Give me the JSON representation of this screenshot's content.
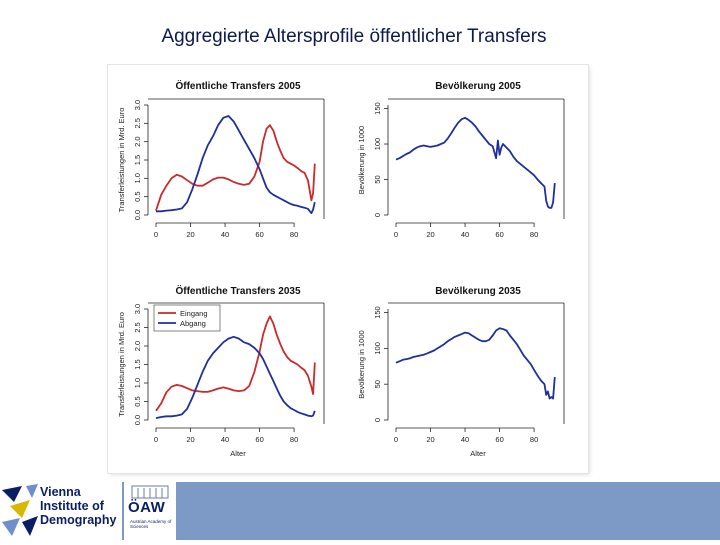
{
  "slide": {
    "title": "Aggregierte Altersprofile öffentlicher Transfers"
  },
  "logos": {
    "vid": {
      "line1": "Vienna",
      "line2": "Institute of",
      "line3": "Demography"
    },
    "oaw": {
      "name": "ÖAW",
      "sub": "Austrian Academy of Sciences"
    }
  },
  "colors": {
    "inflow": "#cc2a2a",
    "outflow": "#1f2f9c",
    "footer": "#7d9ac7",
    "title": "#0d1a4a"
  },
  "chart_data": [
    {
      "type": "line",
      "title": "Öffentliche Transfers 2005",
      "xlabel": "",
      "ylabel": "Transferleistungen in Mrd. Euro",
      "xlim": [
        0,
        95
      ],
      "ylim": [
        0,
        3.0
      ],
      "xticks": [
        "0",
        "20",
        "40",
        "60",
        "80"
      ],
      "yticks": [
        "0.0",
        "0.5",
        "1.0",
        "1.5",
        "2.0",
        "2.5",
        "3.0"
      ],
      "series": [
        {
          "name": "Eingang",
          "color": "#cc2a2a",
          "x": [
            0,
            3,
            6,
            9,
            12,
            15,
            18,
            21,
            24,
            27,
            30,
            33,
            36,
            39,
            42,
            45,
            48,
            51,
            54,
            57,
            60,
            62,
            64,
            66,
            68,
            70,
            72,
            74,
            76,
            78,
            80,
            82,
            84,
            86,
            88,
            90,
            91,
            92
          ],
          "y": [
            0.12,
            0.55,
            0.8,
            1.0,
            1.1,
            1.05,
            0.95,
            0.85,
            0.8,
            0.8,
            0.88,
            0.97,
            1.02,
            1.02,
            0.97,
            0.9,
            0.85,
            0.82,
            0.85,
            1.05,
            1.45,
            2.0,
            2.35,
            2.45,
            2.3,
            2.0,
            1.75,
            1.55,
            1.45,
            1.4,
            1.35,
            1.28,
            1.2,
            1.15,
            0.95,
            0.4,
            0.6,
            1.4
          ]
        },
        {
          "name": "Abgang",
          "color": "#1f2f9c",
          "x": [
            0,
            3,
            6,
            9,
            12,
            15,
            18,
            21,
            24,
            27,
            30,
            33,
            36,
            39,
            42,
            45,
            48,
            51,
            54,
            57,
            60,
            62,
            64,
            66,
            68,
            70,
            72,
            74,
            76,
            78,
            80,
            82,
            84,
            86,
            88,
            90,
            91,
            92
          ],
          "y": [
            0.1,
            0.1,
            0.12,
            0.13,
            0.15,
            0.18,
            0.35,
            0.7,
            1.1,
            1.55,
            1.9,
            2.15,
            2.45,
            2.65,
            2.7,
            2.55,
            2.3,
            2.05,
            1.8,
            1.55,
            1.25,
            1.0,
            0.75,
            0.62,
            0.55,
            0.5,
            0.45,
            0.4,
            0.35,
            0.3,
            0.27,
            0.25,
            0.22,
            0.2,
            0.17,
            0.05,
            0.15,
            0.35
          ]
        }
      ]
    },
    {
      "type": "line",
      "title": "Bevölkerung 2005",
      "xlabel": "",
      "ylabel": "Bevölkerung in 1000",
      "xlim": [
        0,
        95
      ],
      "ylim": [
        0,
        155
      ],
      "xticks": [
        "0",
        "20",
        "40",
        "60",
        "80"
      ],
      "yticks": [
        "0",
        "50",
        "100",
        "150"
      ],
      "series": [
        {
          "name": "Bevölkerung",
          "color": "#1f2f9c",
          "x": [
            0,
            2,
            4,
            6,
            8,
            10,
            12,
            14,
            16,
            18,
            20,
            22,
            24,
            26,
            28,
            30,
            32,
            34,
            36,
            38,
            40,
            42,
            44,
            46,
            48,
            50,
            52,
            54,
            56,
            58,
            59,
            60,
            61,
            62,
            64,
            66,
            68,
            70,
            72,
            74,
            76,
            78,
            80,
            82,
            84,
            86,
            87,
            88,
            89,
            90,
            91,
            92
          ],
          "y": [
            78,
            80,
            83,
            86,
            88,
            92,
            95,
            97,
            98,
            97,
            96,
            97,
            98,
            100,
            102,
            108,
            115,
            123,
            130,
            135,
            137,
            134,
            130,
            125,
            118,
            112,
            106,
            100,
            97,
            80,
            105,
            85,
            95,
            100,
            95,
            90,
            82,
            76,
            72,
            68,
            64,
            60,
            56,
            50,
            45,
            40,
            20,
            12,
            10,
            10,
            18,
            45
          ]
        }
      ]
    },
    {
      "type": "line",
      "title": "Öffentliche Transfers 2035",
      "xlabel": "Alter",
      "ylabel": "Transferleistungen in Mrd. Euro",
      "xlim": [
        0,
        95
      ],
      "ylim": [
        0,
        3.0
      ],
      "xticks": [
        "0",
        "20",
        "40",
        "60",
        "80"
      ],
      "yticks": [
        "0.0",
        "0.5",
        "1.0",
        "1.5",
        "2.0",
        "2.5",
        "3.0"
      ],
      "legend": {
        "position": "top-left",
        "entries": [
          "Eingang",
          "Abgang"
        ]
      },
      "series": [
        {
          "name": "Eingang",
          "color": "#cc2a2a",
          "x": [
            0,
            3,
            6,
            9,
            12,
            15,
            18,
            21,
            24,
            27,
            30,
            33,
            36,
            39,
            42,
            45,
            48,
            51,
            54,
            57,
            60,
            62,
            64,
            66,
            68,
            70,
            72,
            74,
            76,
            78,
            80,
            82,
            84,
            86,
            88,
            90,
            91,
            92
          ],
          "y": [
            0.25,
            0.45,
            0.75,
            0.9,
            0.95,
            0.92,
            0.86,
            0.8,
            0.78,
            0.76,
            0.76,
            0.8,
            0.85,
            0.88,
            0.85,
            0.8,
            0.78,
            0.8,
            0.92,
            1.3,
            1.85,
            2.3,
            2.6,
            2.8,
            2.6,
            2.3,
            2.05,
            1.85,
            1.7,
            1.6,
            1.55,
            1.5,
            1.42,
            1.35,
            1.2,
            0.9,
            0.7,
            1.55
          ]
        },
        {
          "name": "Abgang",
          "color": "#1f2f9c",
          "x": [
            0,
            3,
            6,
            9,
            12,
            15,
            18,
            21,
            24,
            27,
            30,
            33,
            36,
            39,
            42,
            45,
            48,
            51,
            54,
            57,
            60,
            62,
            64,
            66,
            68,
            70,
            72,
            74,
            76,
            78,
            80,
            82,
            84,
            86,
            88,
            90,
            91,
            92
          ],
          "y": [
            0.05,
            0.08,
            0.1,
            0.1,
            0.12,
            0.15,
            0.3,
            0.6,
            0.95,
            1.3,
            1.6,
            1.8,
            1.95,
            2.1,
            2.2,
            2.25,
            2.2,
            2.1,
            2.05,
            1.95,
            1.8,
            1.65,
            1.45,
            1.25,
            1.05,
            0.85,
            0.65,
            0.5,
            0.4,
            0.32,
            0.27,
            0.22,
            0.18,
            0.15,
            0.12,
            0.1,
            0.12,
            0.25
          ]
        }
      ]
    },
    {
      "type": "line",
      "title": "Bevölkerung 2035",
      "xlabel": "Alter",
      "ylabel": "Bevölkerung in 1000",
      "xlim": [
        0,
        95
      ],
      "ylim": [
        0,
        155
      ],
      "xticks": [
        "0",
        "20",
        "40",
        "60",
        "80"
      ],
      "yticks": [
        "0",
        "50",
        "100",
        "150"
      ],
      "series": [
        {
          "name": "Bevölkerung",
          "color": "#1f2f9c",
          "x": [
            0,
            2,
            4,
            6,
            8,
            10,
            12,
            14,
            16,
            18,
            20,
            22,
            24,
            26,
            28,
            30,
            32,
            34,
            36,
            38,
            40,
            42,
            44,
            46,
            48,
            50,
            52,
            54,
            56,
            58,
            60,
            62,
            64,
            66,
            68,
            70,
            72,
            74,
            76,
            78,
            80,
            82,
            84,
            86,
            87,
            88,
            89,
            90,
            91,
            92
          ],
          "y": [
            80,
            82,
            84,
            85,
            86,
            88,
            89,
            90,
            91,
            93,
            95,
            97,
            100,
            103,
            106,
            110,
            113,
            116,
            118,
            120,
            122,
            121,
            118,
            115,
            112,
            110,
            110,
            112,
            118,
            125,
            128,
            127,
            125,
            118,
            112,
            106,
            98,
            90,
            84,
            78,
            70,
            62,
            55,
            50,
            35,
            40,
            30,
            32,
            30,
            60
          ]
        }
      ]
    }
  ]
}
